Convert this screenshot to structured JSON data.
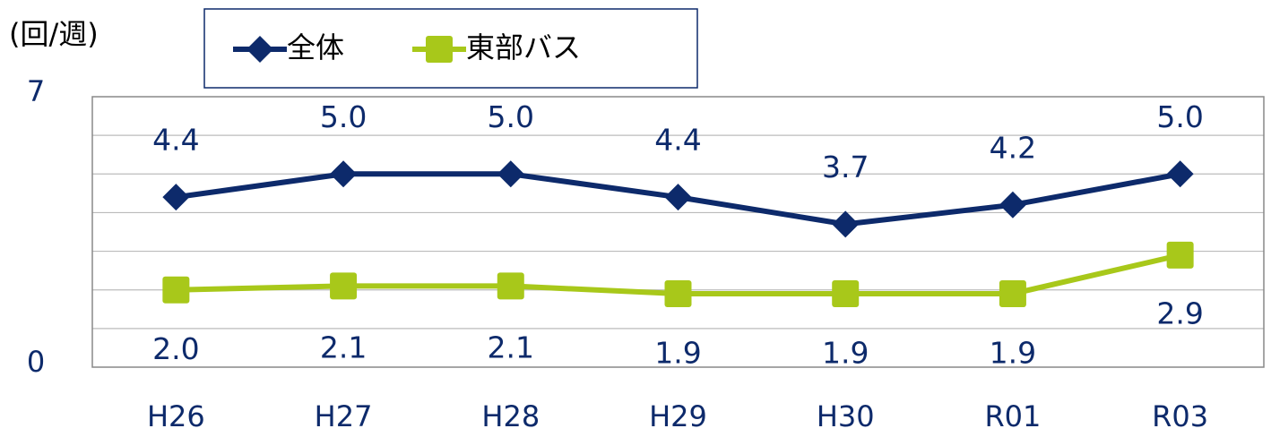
{
  "chart_data": {
    "type": "line",
    "y_label": "(回/週)",
    "categories": [
      "H26",
      "H27",
      "H28",
      "H29",
      "H30",
      "R01",
      "R03"
    ],
    "series": [
      {
        "name": "全体",
        "color": "#0d2a6b",
        "marker": "diamond",
        "values": [
          4.4,
          5.0,
          5.0,
          4.4,
          3.7,
          4.2,
          5.0
        ],
        "value_labels": [
          "4.4",
          "5.0",
          "5.0",
          "4.4",
          "3.7",
          "4.2",
          "5.0"
        ]
      },
      {
        "name": "東部バス",
        "color": "#a8c81a",
        "marker": "square",
        "values": [
          2.0,
          2.1,
          2.1,
          1.9,
          1.9,
          1.9,
          2.9
        ],
        "value_labels": [
          "2.0",
          "2.1",
          "2.1",
          "1.9",
          "1.9",
          "1.9",
          "2.9"
        ]
      }
    ],
    "ylim": [
      0,
      7
    ],
    "yticks": [
      0,
      7
    ],
    "gridlines": [
      1,
      2,
      3,
      4,
      5,
      6
    ],
    "grid": true,
    "legend": "top"
  }
}
